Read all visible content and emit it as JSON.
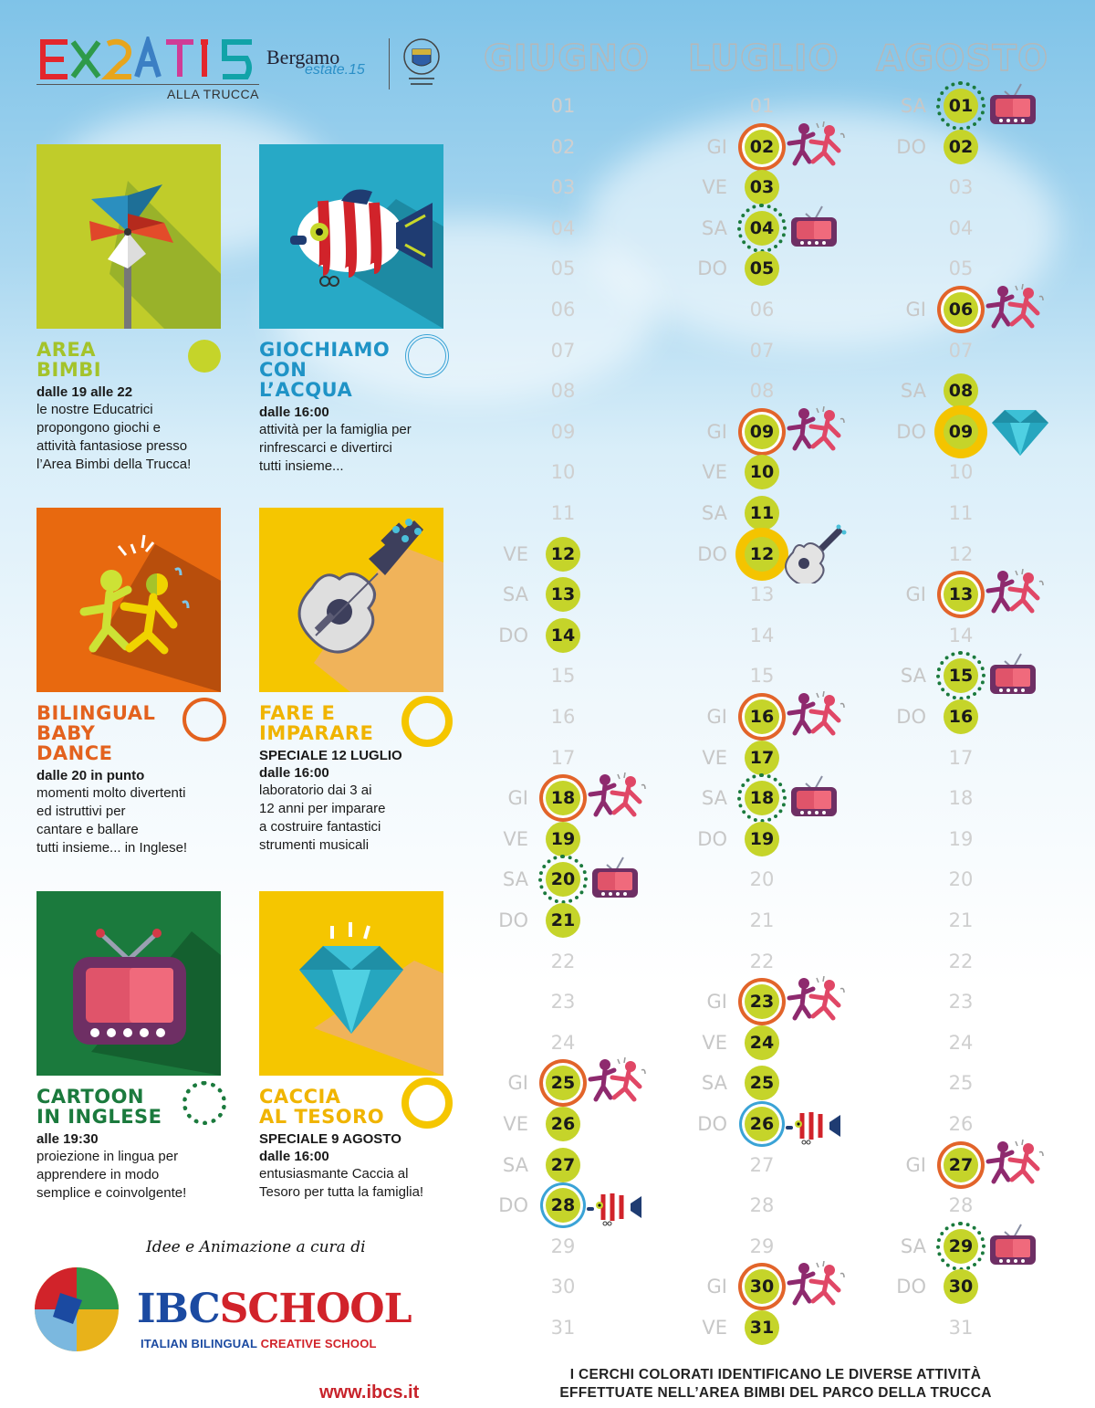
{
  "header": {
    "expo_logo_text": "EXPO 2015",
    "expo_subtitle": "ALLA TRUCCA",
    "bergamo": "Bergamo",
    "bergamo_sub": "estate.15",
    "seal_text": "COMUNE DI BERGAMO"
  },
  "activities": [
    {
      "title": "AREA\nBIMBI",
      "subtitle": "dalle 19 alle 22",
      "desc": "le nostre Educatrici\npropongono giochi e\nattività fantasiose presso\nl’Area Bimbi della Trucca!",
      "color": "#a4c32a",
      "marker": "filled"
    },
    {
      "title": "GIOCHIAMO\nCON\nL’ACQUA",
      "subtitle": "dalle 16:00",
      "desc": "attività per la famiglia per\nrinfrescarci e divertirci\ntutti insieme...",
      "color": "#1f93c6",
      "marker": "blue-ring"
    },
    {
      "title": "BILINGUAL\nBABY\nDANCE",
      "subtitle": "dalle 20 in punto",
      "desc": "momenti molto divertenti\ned istruttivi per\ncantare e ballare\ntutti insieme... in Inglese!",
      "color": "#e3621e",
      "marker": "orange-ring"
    },
    {
      "title": "FARE E\nIMPARARE",
      "subtitle": "SPECIALE 12 LUGLIO\ndalle 16:00",
      "desc": "laboratorio dai 3 ai\n12 anni per imparare\na costruire fantastici\nstrumenti musicali",
      "color": "#f0b400",
      "marker": "yellow-ring"
    },
    {
      "title": "CARTOON\nIN INGLESE",
      "subtitle": "alle 19:30",
      "desc": "proiezione in lingua per\napprendere in modo\nsemplice e coinvolgente!",
      "color": "#1b7a3d",
      "marker": "green-dots"
    },
    {
      "title": "CACCIA\nAL TESORO",
      "subtitle": "SPECIALE 9 AGOSTO\ndalle 16:00",
      "desc": "entusiasmante Caccia al\nTesoro per tutta la famiglia!",
      "color": "#f0b400",
      "marker": "yellow-ring"
    }
  ],
  "credits": {
    "idee": "Idee e Animazione a cura di",
    "ibc_a": "IBC",
    "ibc_b": "SCHOOL",
    "sub_a": "ITALIAN BILINGUAL",
    "sub_b": "CREATIVE SCHOOL",
    "url": "www.ibcs.it"
  },
  "calendar": {
    "months": [
      "GIUGNO",
      "LUGLIO",
      "AGOSTO"
    ],
    "days": [
      "01",
      "02",
      "03",
      "04",
      "05",
      "06",
      "07",
      "08",
      "09",
      "10",
      "11",
      "12",
      "13",
      "14",
      "15",
      "16",
      "17",
      "18",
      "19",
      "20",
      "21",
      "22",
      "23",
      "24",
      "25",
      "26",
      "27",
      "28",
      "29",
      "30",
      "31"
    ],
    "events": [
      [
        {
          "day": 12,
          "wd": "VE",
          "ring": "",
          "icon": ""
        },
        {
          "day": 13,
          "wd": "SA",
          "ring": "",
          "icon": ""
        },
        {
          "day": 14,
          "wd": "DO",
          "ring": "",
          "icon": ""
        },
        {
          "day": 18,
          "wd": "GI",
          "ring": "orange",
          "icon": "dance"
        },
        {
          "day": 19,
          "wd": "VE",
          "ring": "",
          "icon": ""
        },
        {
          "day": 20,
          "wd": "SA",
          "ring": "dots",
          "icon": "tv"
        },
        {
          "day": 21,
          "wd": "DO",
          "ring": "",
          "icon": ""
        },
        {
          "day": 25,
          "wd": "GI",
          "ring": "orange",
          "icon": "dance"
        },
        {
          "day": 26,
          "wd": "VE",
          "ring": "",
          "icon": ""
        },
        {
          "day": 27,
          "wd": "SA",
          "ring": "",
          "icon": ""
        },
        {
          "day": 28,
          "wd": "DO",
          "ring": "blue",
          "icon": "fish"
        }
      ],
      [
        {
          "day": 2,
          "wd": "GI",
          "ring": "orange",
          "icon": "dance"
        },
        {
          "day": 3,
          "wd": "VE",
          "ring": "",
          "icon": ""
        },
        {
          "day": 4,
          "wd": "SA",
          "ring": "dots",
          "icon": "tv"
        },
        {
          "day": 5,
          "wd": "DO",
          "ring": "",
          "icon": ""
        },
        {
          "day": 9,
          "wd": "GI",
          "ring": "orange",
          "icon": "dance"
        },
        {
          "day": 10,
          "wd": "VE",
          "ring": "",
          "icon": ""
        },
        {
          "day": 11,
          "wd": "SA",
          "ring": "",
          "icon": ""
        },
        {
          "day": 12,
          "wd": "DO",
          "ring": "big",
          "icon": "guitar"
        },
        {
          "day": 16,
          "wd": "GI",
          "ring": "orange",
          "icon": "dance"
        },
        {
          "day": 17,
          "wd": "VE",
          "ring": "",
          "icon": ""
        },
        {
          "day": 18,
          "wd": "SA",
          "ring": "dots",
          "icon": "tv"
        },
        {
          "day": 19,
          "wd": "DO",
          "ring": "",
          "icon": ""
        },
        {
          "day": 23,
          "wd": "GI",
          "ring": "orange",
          "icon": "dance"
        },
        {
          "day": 24,
          "wd": "VE",
          "ring": "",
          "icon": ""
        },
        {
          "day": 25,
          "wd": "SA",
          "ring": "",
          "icon": ""
        },
        {
          "day": 26,
          "wd": "DO",
          "ring": "blue",
          "icon": "fish"
        },
        {
          "day": 30,
          "wd": "GI",
          "ring": "orange",
          "icon": "dance"
        },
        {
          "day": 31,
          "wd": "VE",
          "ring": "",
          "icon": ""
        }
      ],
      [
        {
          "day": 1,
          "wd": "SA",
          "ring": "dots",
          "icon": "tv"
        },
        {
          "day": 2,
          "wd": "DO",
          "ring": "",
          "icon": ""
        },
        {
          "day": 6,
          "wd": "GI",
          "ring": "orange",
          "icon": "dance"
        },
        {
          "day": 8,
          "wd": "SA",
          "ring": "",
          "icon": ""
        },
        {
          "day": 9,
          "wd": "DO",
          "ring": "big",
          "icon": "diamond"
        },
        {
          "day": 13,
          "wd": "GI",
          "ring": "orange",
          "icon": "dance"
        },
        {
          "day": 15,
          "wd": "SA",
          "ring": "dots",
          "icon": "tv"
        },
        {
          "day": 16,
          "wd": "DO",
          "ring": "",
          "icon": ""
        },
        {
          "day": 27,
          "wd": "GI",
          "ring": "orange",
          "icon": "dance"
        },
        {
          "day": 29,
          "wd": "SA",
          "ring": "dots",
          "icon": "tv"
        },
        {
          "day": 30,
          "wd": "DO",
          "ring": "",
          "icon": ""
        }
      ]
    ]
  },
  "footer": {
    "line1": "I CERCHI COLORATI IDENTIFICANO LE DIVERSE ATTIVITÀ",
    "line2": "EFFETTUATE NELL’AREA BIMBI DEL PARCO DELLA TRUCCA"
  },
  "colors": {
    "lime": "#c5d42a",
    "orange": "#e3621e",
    "blue": "#1f93c6",
    "yellow": "#f0b400",
    "green": "#1b7a3d",
    "red": "#c8232b"
  }
}
